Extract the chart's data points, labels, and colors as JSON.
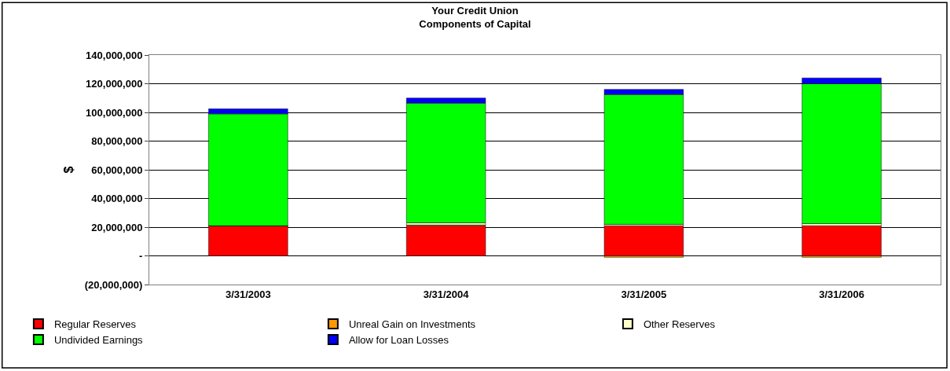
{
  "chart_data": {
    "type": "bar",
    "stacked": true,
    "title": "Your Credit Union\nComponents of Capital",
    "ylabel": "$",
    "categories": [
      "3/31/2003",
      "3/31/2004",
      "3/31/2005",
      "3/31/2006"
    ],
    "series": [
      {
        "name": "Regular Reserves",
        "color": "#ff0000",
        "values": [
          21000000,
          21000000,
          21000000,
          21000000
        ]
      },
      {
        "name": "Unreal Gain on Investments",
        "color": "#ff9900",
        "values": [
          0,
          500000,
          -1000000,
          -1000000
        ]
      },
      {
        "name": "Other Reserves",
        "color": "#ffffcc",
        "values": [
          0,
          1500000,
          1000000,
          1500000
        ]
      },
      {
        "name": "Undivided Earnings",
        "color": "#00ff00",
        "values": [
          78000000,
          83500000,
          90500000,
          97500000
        ]
      },
      {
        "name": "Allow for Loan Losses",
        "color": "#0000ff",
        "values": [
          3500000,
          3500000,
          3500000,
          4000000
        ]
      }
    ],
    "ylim": [
      -20000000,
      140000000
    ],
    "yticks": [
      {
        "value": -20000000,
        "label": "(20,000,000)"
      },
      {
        "value": 0,
        "label": "-"
      },
      {
        "value": 20000000,
        "label": "20,000,000"
      },
      {
        "value": 40000000,
        "label": "40,000,000"
      },
      {
        "value": 60000000,
        "label": "60,000,000"
      },
      {
        "value": 80000000,
        "label": "80,000,000"
      },
      {
        "value": 100000000,
        "label": "100,000,000"
      },
      {
        "value": 120000000,
        "label": "120,000,000"
      },
      {
        "value": 140000000,
        "label": "140,000,000"
      }
    ],
    "grid": "y",
    "legend": "bottom"
  }
}
